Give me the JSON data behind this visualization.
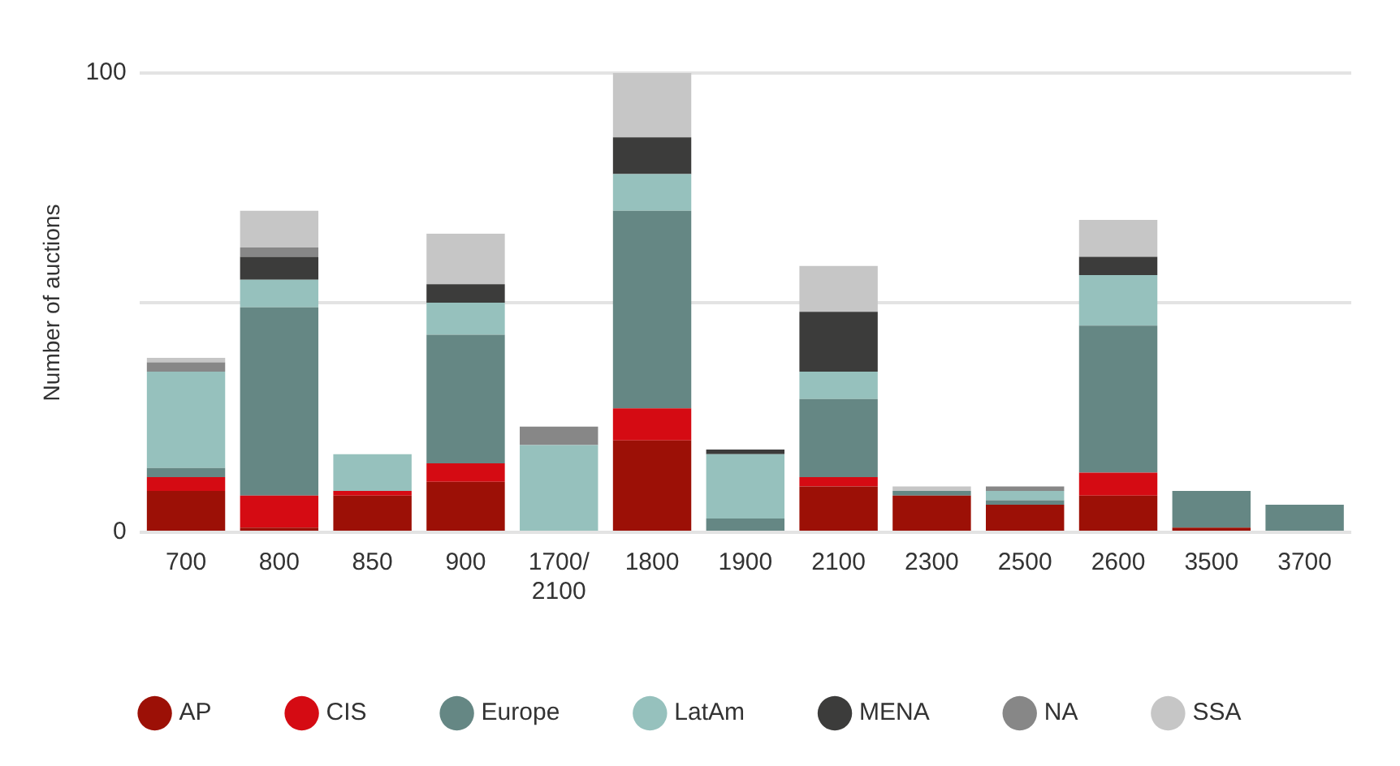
{
  "chart_data": {
    "type": "bar",
    "stacked": true,
    "ylabel": "Number of auctions",
    "categories": [
      "700",
      "800",
      "850",
      "900",
      "1700/2100",
      "1800",
      "1900",
      "2100",
      "2300",
      "2500",
      "2600",
      "3500",
      "3700"
    ],
    "series": [
      {
        "name": "AP",
        "color": "#9c1006",
        "values": [
          9,
          1,
          8,
          11,
          0,
          20,
          0,
          10,
          8,
          6,
          8,
          1,
          0
        ]
      },
      {
        "name": "CIS",
        "color": "#d50b13",
        "values": [
          3,
          7,
          1,
          4,
          0,
          7,
          0,
          2,
          0,
          0,
          5,
          0,
          0
        ]
      },
      {
        "name": "Europe",
        "color": "#658784",
        "values": [
          2,
          41,
          0,
          28,
          0,
          43,
          3,
          17,
          1,
          1,
          32,
          8,
          6
        ]
      },
      {
        "name": "LatAm",
        "color": "#96c1bd",
        "values": [
          21,
          6,
          8,
          7,
          19,
          8,
          14,
          6,
          0,
          2,
          11,
          0,
          0
        ]
      },
      {
        "name": "MENA",
        "color": "#3c3c3b",
        "values": [
          0,
          5,
          0,
          4,
          0,
          8,
          1,
          13,
          0,
          0,
          4,
          0,
          0
        ]
      },
      {
        "name": "NA",
        "color": "#878787",
        "values": [
          2,
          2,
          0,
          0,
          4,
          0,
          0,
          0,
          0,
          1,
          0,
          0,
          0
        ]
      },
      {
        "name": "SSA",
        "color": "#c6c6c6",
        "values": [
          1,
          8,
          0,
          11,
          0,
          14,
          0,
          10,
          1,
          0,
          8,
          0,
          0
        ]
      }
    ],
    "ylim": [
      0,
      100
    ],
    "yticks": [
      0,
      {
        "value": 50,
        "label": null
      },
      100
    ],
    "grid": "y",
    "legend": "bottom",
    "marker": "circle"
  }
}
